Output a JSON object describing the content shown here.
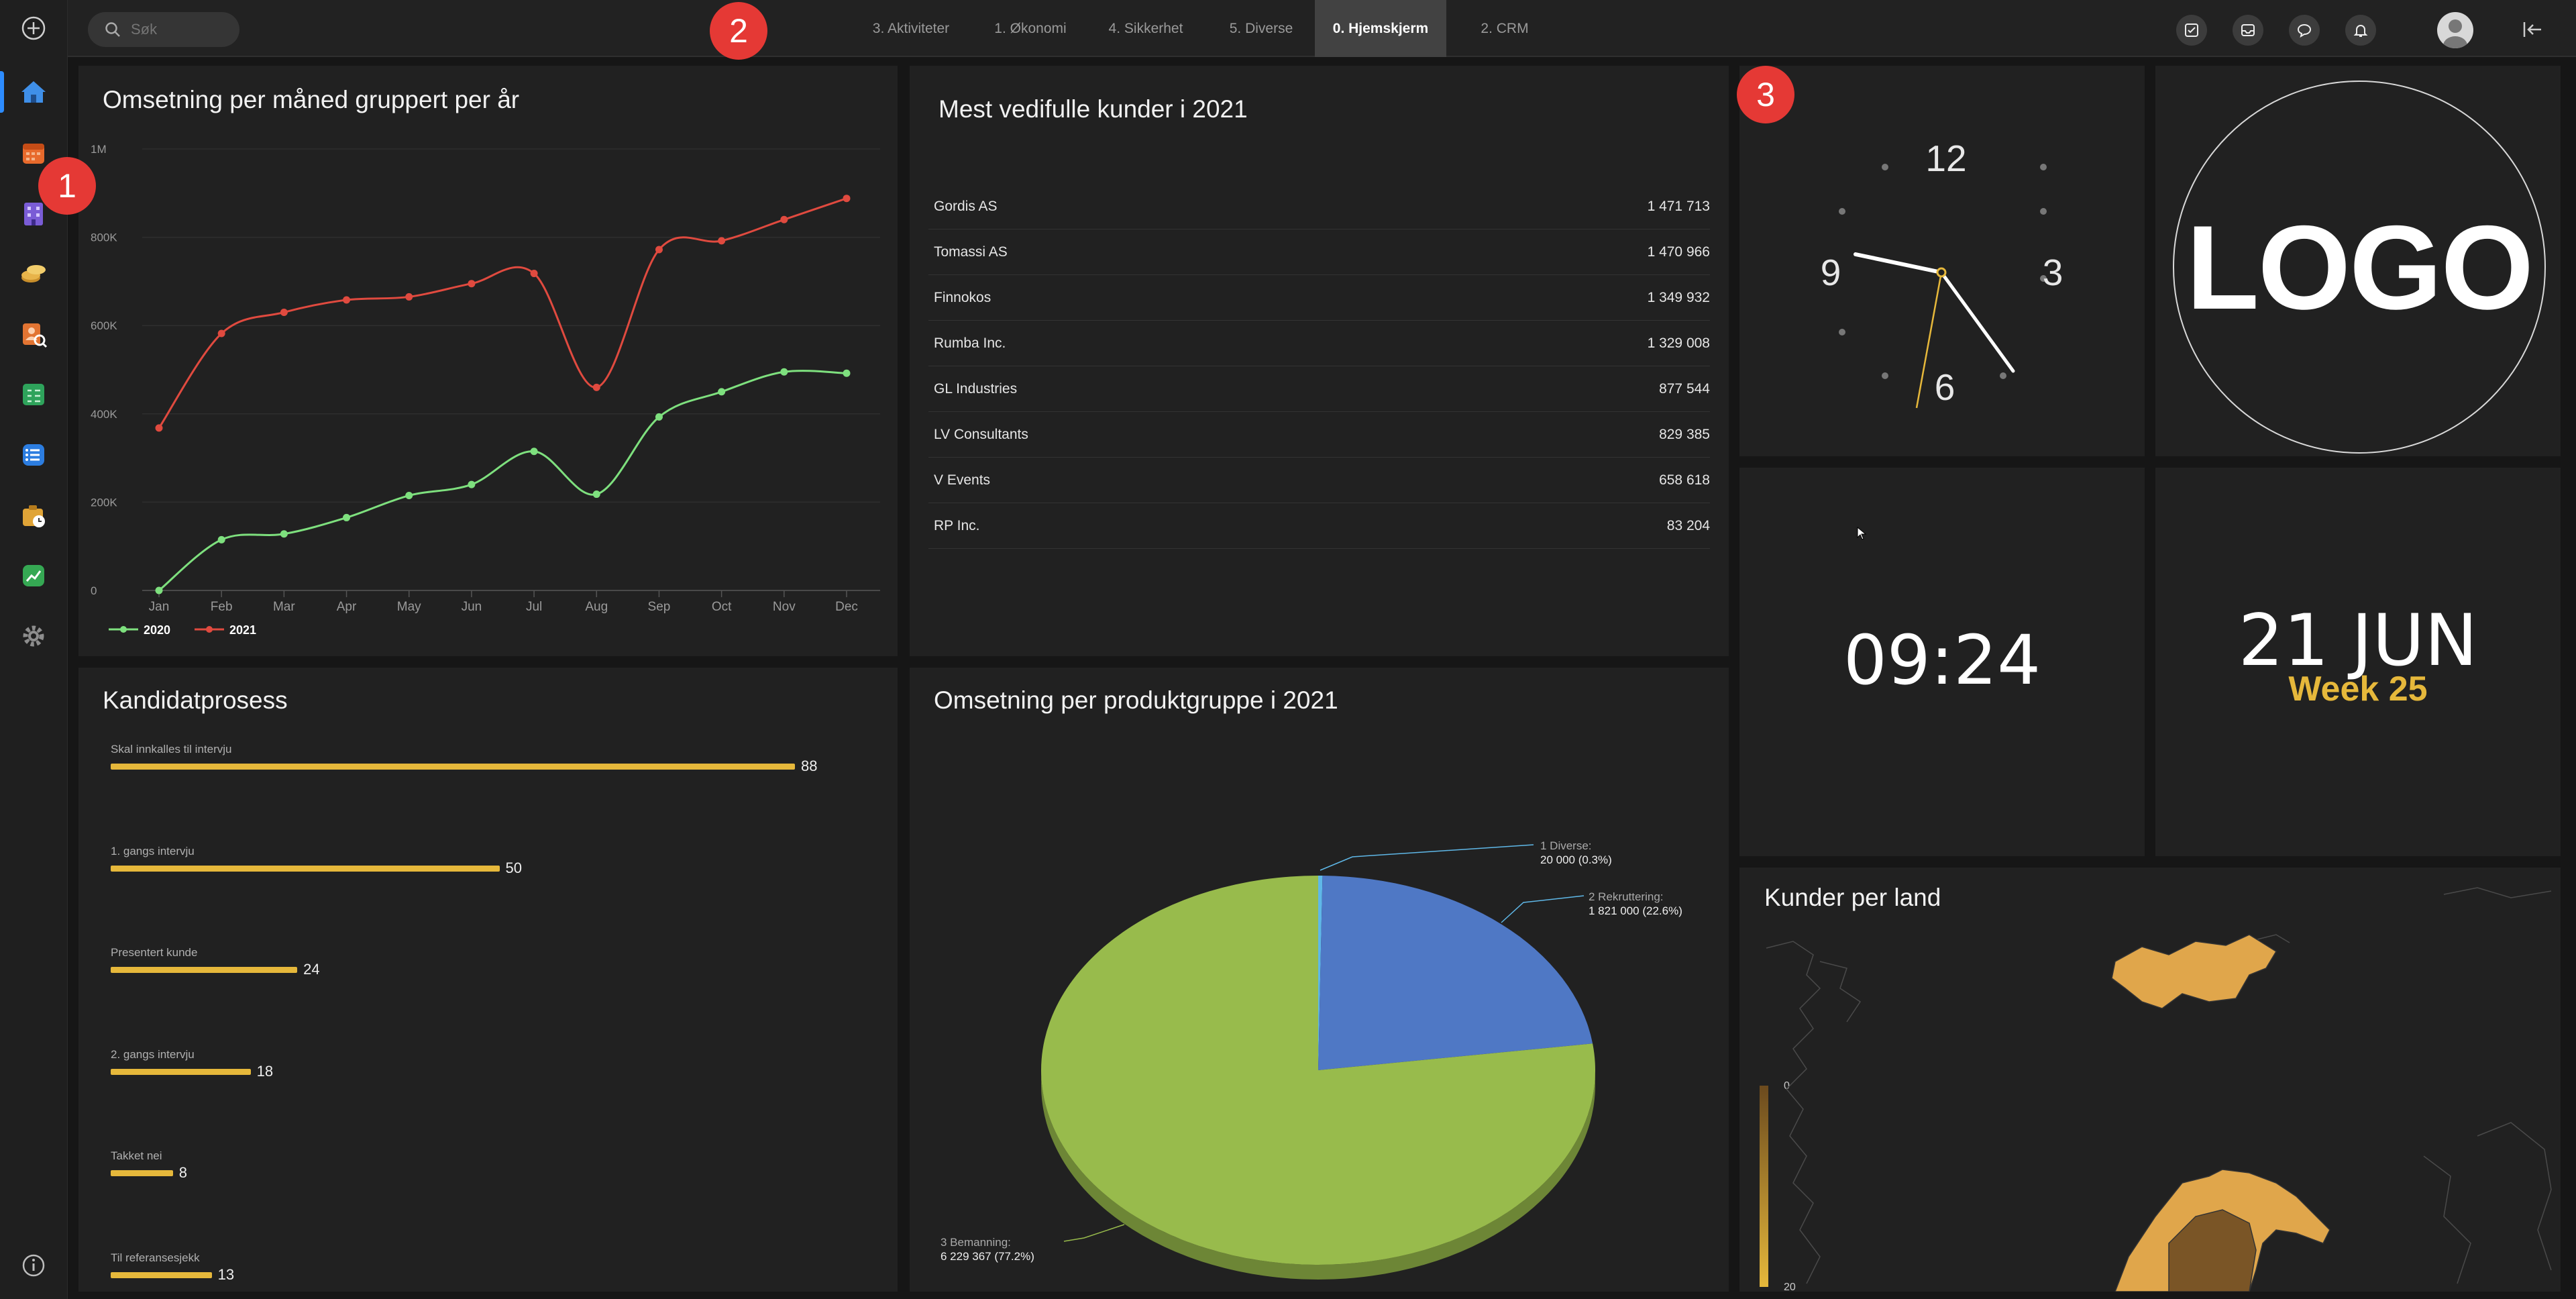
{
  "search": {
    "placeholder": "Søk"
  },
  "tabs": [
    {
      "label": "3. Aktiviteter"
    },
    {
      "label": "1. Økonomi"
    },
    {
      "label": "4. Sikkerhet"
    },
    {
      "label": "5. Diverse"
    },
    {
      "label": "0. Hjemskjerm",
      "active": true
    },
    {
      "label": "2. CRM"
    }
  ],
  "badges": [
    "1",
    "2",
    "3"
  ],
  "sidebar": {
    "items": [
      {
        "icon": "plus-circle-icon"
      },
      {
        "icon": "home-icon",
        "active": true
      },
      {
        "icon": "calendar-icon"
      },
      {
        "icon": "building-icon"
      },
      {
        "icon": "coins-icon"
      },
      {
        "icon": "search-person-icon"
      },
      {
        "icon": "spreadsheet-icon"
      },
      {
        "icon": "list-icon"
      },
      {
        "icon": "timesheet-icon"
      },
      {
        "icon": "trend-icon"
      },
      {
        "icon": "gear-icon"
      },
      {
        "icon": "info-icon"
      }
    ]
  },
  "line_panel": {
    "title": "Omsetning per måned gruppert per år"
  },
  "customers_panel": {
    "title": "Mest vedifulle kunder i 2021",
    "rows": [
      {
        "name": "Gordis AS",
        "value": "1 471 713"
      },
      {
        "name": "Tomassi AS",
        "value": "1 470 966"
      },
      {
        "name": "Finnokos",
        "value": "1 349 932"
      },
      {
        "name": "Rumba Inc.",
        "value": "1 329 008"
      },
      {
        "name": "GL Industries",
        "value": "877 544"
      },
      {
        "name": "LV Consultants",
        "value": "829 385"
      },
      {
        "name": "V Events",
        "value": "658 618"
      },
      {
        "name": "RP Inc.",
        "value": "83 204"
      }
    ]
  },
  "clock": {
    "numbers": [
      "12",
      "3",
      "6",
      "9"
    ],
    "time": "09:24"
  },
  "logo": {
    "text": "LOGO"
  },
  "date": {
    "day_month": "21 JUN",
    "week": "Week 25"
  },
  "candidates_panel": {
    "title": "Kandidatprosess"
  },
  "pie_panel": {
    "title": "Omsetning per produktgruppe i 2021"
  },
  "map_panel": {
    "title": "Kunder per land",
    "legend_min": "0",
    "legend_max": "20"
  },
  "colors": {
    "accent": "#e6b83b",
    "series_2020": "#7ee07e",
    "series_2021": "#e04a3f",
    "pie_blue": "#4f78c5",
    "pie_green": "#98bb4c"
  },
  "chart_data": [
    {
      "type": "line",
      "title": "Omsetning per måned gruppert per år",
      "categories": [
        "Jan",
        "Feb",
        "Mar",
        "Apr",
        "May",
        "Jun",
        "Jul",
        "Aug",
        "Sep",
        "Oct",
        "Nov",
        "Dec"
      ],
      "series": [
        {
          "name": "2020",
          "color": "#7ee07e",
          "values": [
            0,
            115000,
            128000,
            165000,
            215000,
            240000,
            315000,
            218000,
            393000,
            450000,
            495000,
            492000
          ]
        },
        {
          "name": "2021",
          "color": "#e04a3f",
          "values": [
            368000,
            582000,
            630000,
            658000,
            665000,
            695000,
            718000,
            460000,
            772000,
            792000,
            840000,
            888000
          ]
        }
      ],
      "y_ticks": [
        "0",
        "200K",
        "400K",
        "600K",
        "800K",
        "1M"
      ],
      "ylim": [
        0,
        1000000
      ],
      "legend": "bottom-left"
    },
    {
      "type": "bar",
      "title": "Kandidatprosess",
      "orientation": "horizontal",
      "categories": [
        "Skal innkalles til intervju",
        "1. gangs intervju",
        "Presentert kunde",
        "2. gangs intervju",
        "Takket nei",
        "Til referansesjekk"
      ],
      "values": [
        88,
        50,
        24,
        18,
        8,
        13
      ],
      "xlim": [
        0,
        88
      ]
    },
    {
      "type": "pie",
      "title": "Omsetning per produktgruppe i 2021",
      "slices": [
        {
          "name": "1 Diverse",
          "value": 20000,
          "label": "20 000 (0.3%)",
          "color": "#5fb8e8"
        },
        {
          "name": "2 Rekruttering",
          "value": 1821000,
          "label": "1 821 000 (22.6%)",
          "color": "#4f78c5"
        },
        {
          "name": "3 Bemanning",
          "value": 6229367,
          "label": "6 229 367 (77.2%)",
          "color": "#98bb4c"
        }
      ]
    }
  ]
}
